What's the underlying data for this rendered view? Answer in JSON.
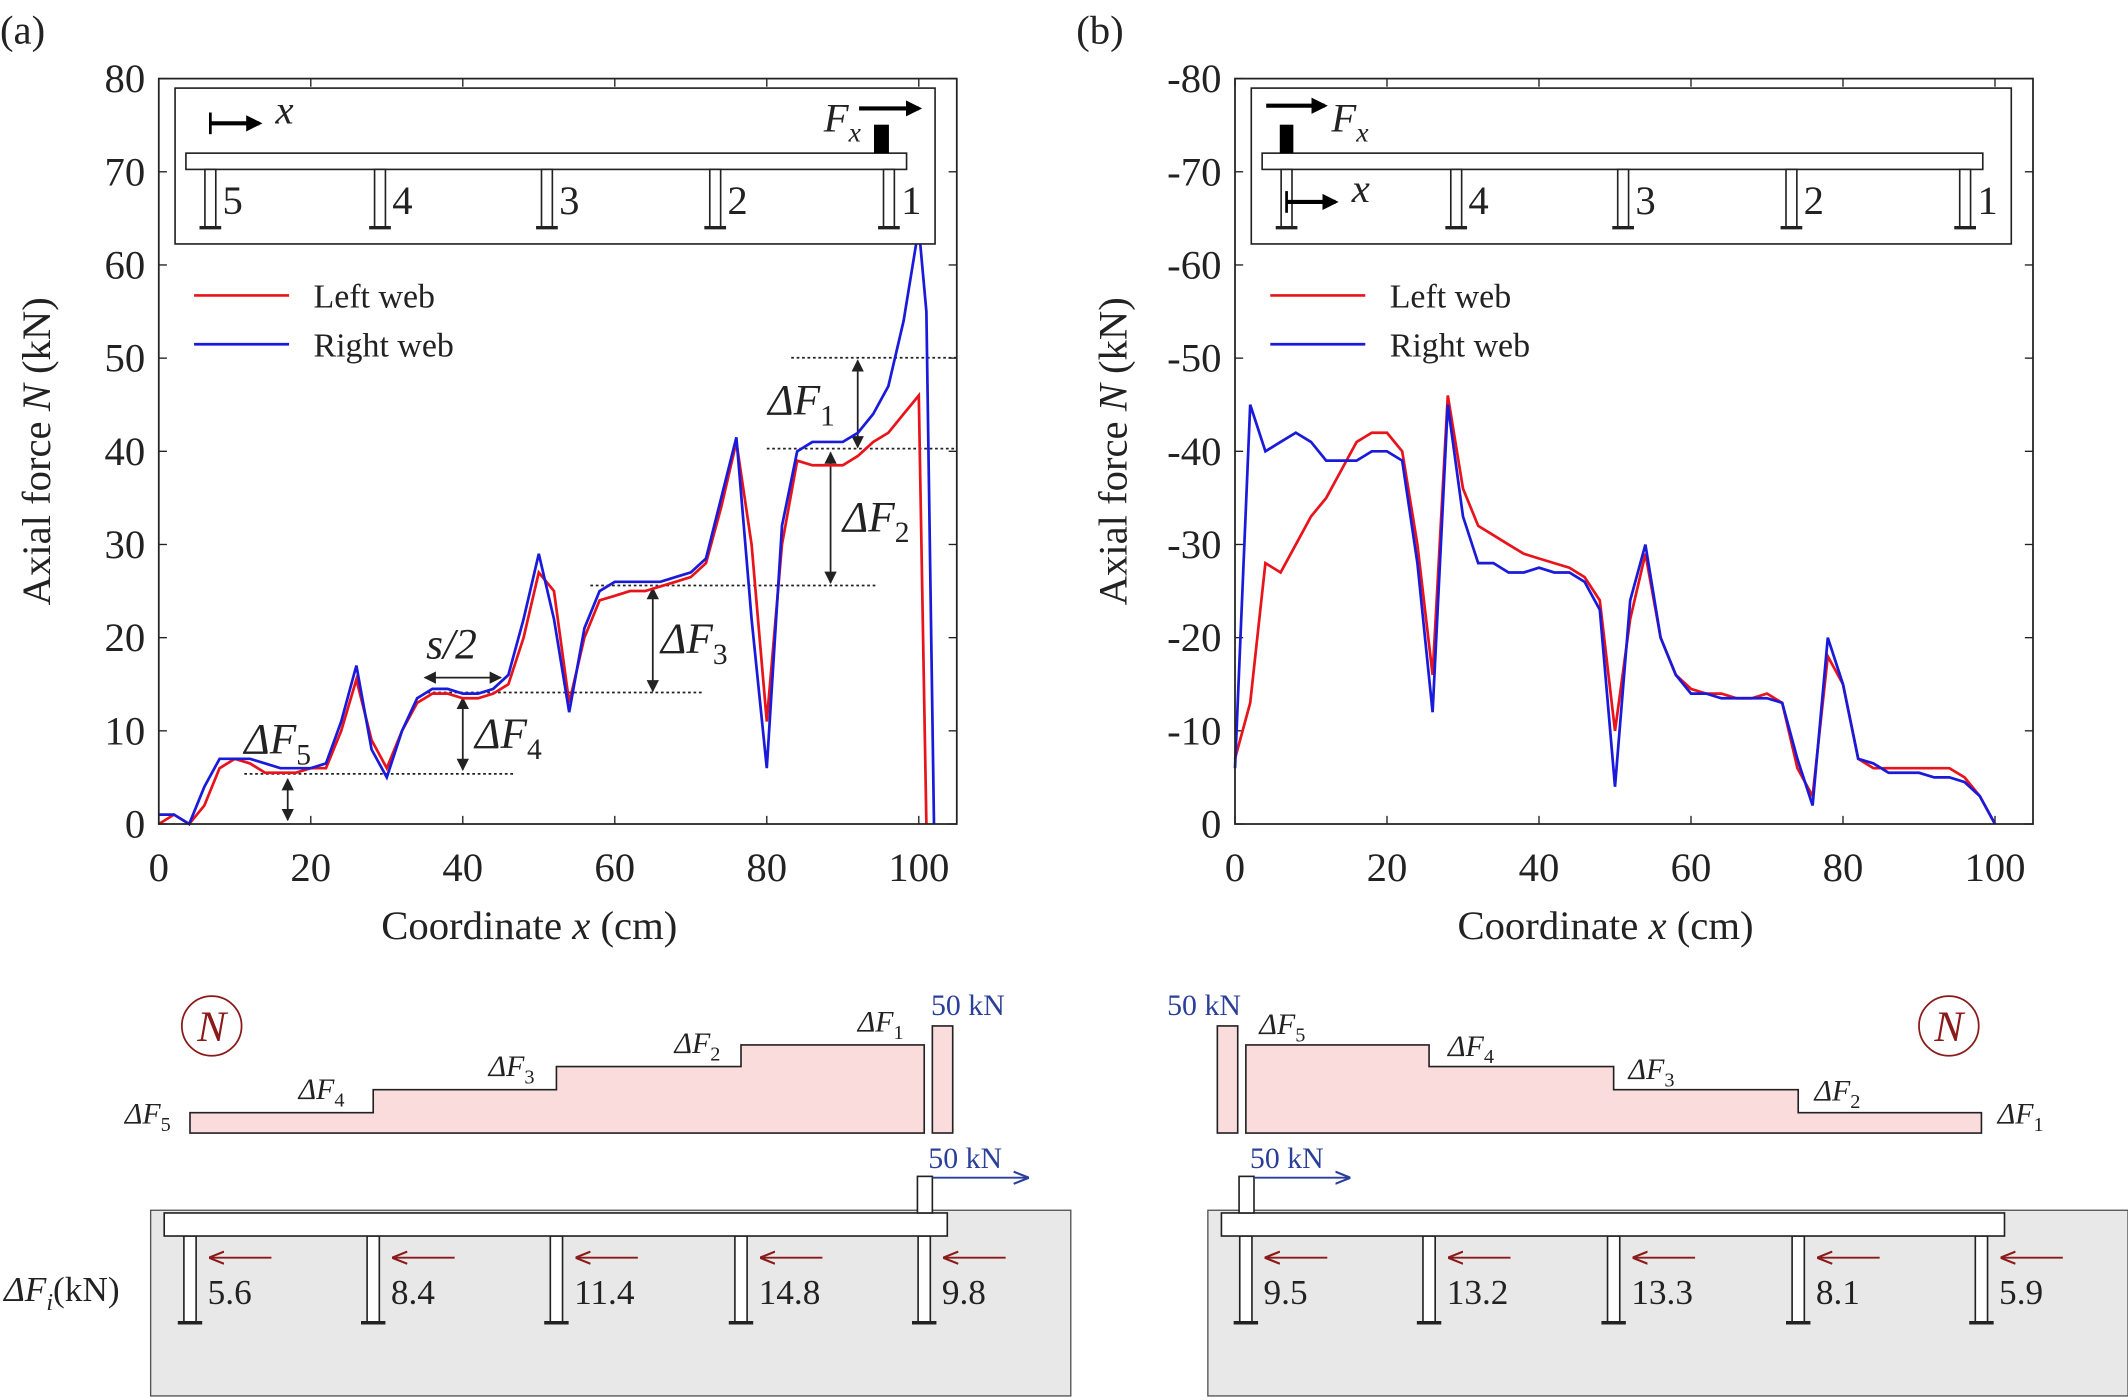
{
  "chart_data": [
    {
      "type": "line",
      "panel": "(a)",
      "xlabel": [
        "Coordinate ",
        "x",
        " (cm)"
      ],
      "ylabel": [
        "Axial force ",
        "N",
        " (kN)"
      ],
      "x": [
        0,
        2,
        4,
        6,
        8,
        10,
        12,
        14,
        16,
        18,
        20,
        22,
        24,
        26,
        28,
        30,
        32,
        34,
        36,
        38,
        40,
        42,
        44,
        46,
        48,
        50,
        52,
        54,
        56,
        58,
        60,
        62,
        64,
        66,
        68,
        70,
        72,
        74,
        76,
        78,
        80,
        82,
        84,
        86,
        88,
        90,
        92,
        94,
        96,
        98,
        100,
        101,
        102
      ],
      "series": [
        {
          "name": "Left web",
          "color": "#e8141b",
          "values": [
            0,
            1,
            0,
            2,
            6,
            7,
            6.5,
            5.5,
            5.5,
            5.5,
            6,
            6,
            10,
            15.5,
            9,
            6,
            10,
            13,
            14,
            14,
            13.5,
            13.5,
            14,
            15,
            20,
            27,
            25,
            13,
            20,
            24,
            24.5,
            25,
            25,
            25.5,
            26,
            26.5,
            28,
            34,
            41,
            30,
            11,
            30,
            39,
            38.5,
            38.5,
            38.5,
            39.5,
            41,
            42,
            44,
            46,
            0,
            null
          ]
        },
        {
          "name": "Right web",
          "color": "#1a1adb",
          "values": [
            1,
            1,
            0,
            4,
            7,
            7,
            7,
            6.5,
            6,
            6,
            6,
            6.5,
            11,
            17,
            8,
            5,
            10,
            13.5,
            14.5,
            14.5,
            14,
            14,
            14.5,
            16,
            22,
            29,
            22,
            12,
            21,
            25,
            26,
            26,
            26,
            26,
            26.5,
            27,
            28.5,
            35,
            41.5,
            22,
            6,
            32,
            40,
            41,
            41,
            41,
            42,
            44,
            47,
            54,
            64,
            55,
            0
          ]
        }
      ],
      "xlim": [
        0,
        105
      ],
      "ylim": [
        0,
        80
      ],
      "xticks": [
        0,
        20,
        40,
        60,
        80,
        100
      ],
      "yticks": [
        0,
        10,
        20,
        30,
        40,
        50,
        60,
        70,
        80
      ],
      "legend": "upper left",
      "annotations": [
        {
          "text": "ΔF",
          "sub": "1"
        },
        {
          "text": "ΔF",
          "sub": "2"
        },
        {
          "text": "ΔF",
          "sub": "3"
        },
        {
          "text": "ΔF",
          "sub": "4"
        },
        {
          "text": "ΔF",
          "sub": "5"
        },
        {
          "text": "s/2"
        }
      ],
      "inset": {
        "x_label": "x",
        "force": {
          "text": "F",
          "sub": "x"
        },
        "piers": [
          "5",
          "4",
          "3",
          "2",
          "1"
        ]
      }
    },
    {
      "type": "line",
      "panel": "(b)",
      "xlabel": [
        "Coordinate ",
        "x",
        " (cm)"
      ],
      "ylabel": [
        "Axial force ",
        "N",
        " (kN)"
      ],
      "x": [
        0,
        2,
        4,
        6,
        8,
        10,
        12,
        14,
        16,
        18,
        20,
        22,
        24,
        26,
        28,
        30,
        32,
        34,
        36,
        38,
        40,
        42,
        44,
        46,
        48,
        50,
        52,
        54,
        56,
        58,
        60,
        62,
        64,
        66,
        68,
        70,
        72,
        74,
        76,
        78,
        80,
        82,
        84,
        86,
        88,
        90,
        92,
        94,
        96,
        98,
        100
      ],
      "series": [
        {
          "name": "Left web",
          "color": "#e8141b",
          "values": [
            -7,
            -13,
            -28,
            -27,
            -30,
            -33,
            -35,
            -38,
            -41,
            -42,
            -42,
            -40,
            -30,
            -16,
            -46,
            -36,
            -32,
            -31,
            -30,
            -29,
            -28.5,
            -28,
            -27.5,
            -26.5,
            -24,
            -10,
            -22,
            -29,
            -20,
            -16,
            -14.5,
            -14,
            -14,
            -13.5,
            -13.5,
            -14,
            -13,
            -6,
            -3,
            -18,
            -15,
            -7,
            -6,
            -6,
            -6,
            -6,
            -6,
            -6,
            -5,
            -3,
            0
          ]
        },
        {
          "name": "Right web",
          "color": "#1a1adb",
          "values": [
            -6,
            -45,
            -40,
            -41,
            -42,
            -41,
            -39,
            -39,
            -39,
            -40,
            -40,
            -39,
            -28,
            -12,
            -45,
            -33,
            -28,
            -28,
            -27,
            -27,
            -27.5,
            -27,
            -27,
            -26,
            -23,
            -4,
            -24,
            -30,
            -20,
            -16,
            -14,
            -14,
            -13.5,
            -13.5,
            -13.5,
            -13.5,
            -13,
            -7,
            -2,
            -20,
            -15,
            -7,
            -6.5,
            -5.5,
            -5.5,
            -5.5,
            -5,
            -5,
            -4.5,
            -3,
            0
          ]
        }
      ],
      "xlim": [
        0,
        105
      ],
      "ylim": [
        0,
        -80
      ],
      "xticks": [
        0,
        20,
        40,
        60,
        80,
        100
      ],
      "yticks": [
        0,
        -10,
        -20,
        -30,
        -40,
        -50,
        -60,
        -70,
        -80
      ],
      "legend": "upper left",
      "inset": {
        "x_label": "x",
        "force": {
          "text": "F",
          "sub": "x"
        },
        "piers": [
          "4",
          "3",
          "2",
          "1"
        ]
      }
    }
  ],
  "diagrams": [
    {
      "symbol": "N",
      "steps": [
        {
          "text": "ΔF",
          "sub": "5"
        },
        {
          "text": "ΔF",
          "sub": "4"
        },
        {
          "text": "ΔF",
          "sub": "3"
        },
        {
          "text": "ΔF",
          "sub": "2"
        },
        {
          "text": "ΔF",
          "sub": "1"
        }
      ],
      "load": "50 kN",
      "force_label": {
        "text": "ΔF",
        "sub": "i",
        "unit": "(kN)"
      },
      "forces": [
        5.6,
        8.4,
        11.4,
        14.8,
        9.8
      ]
    },
    {
      "symbol": "N",
      "steps": [
        {
          "text": "ΔF",
          "sub": "5"
        },
        {
          "text": "ΔF",
          "sub": "4"
        },
        {
          "text": "ΔF",
          "sub": "3"
        },
        {
          "text": "ΔF",
          "sub": "2"
        },
        {
          "text": "ΔF",
          "sub": "1"
        }
      ],
      "load": "50 kN",
      "forces": [
        9.5,
        13.2,
        13.3,
        8.1,
        5.9
      ]
    }
  ]
}
